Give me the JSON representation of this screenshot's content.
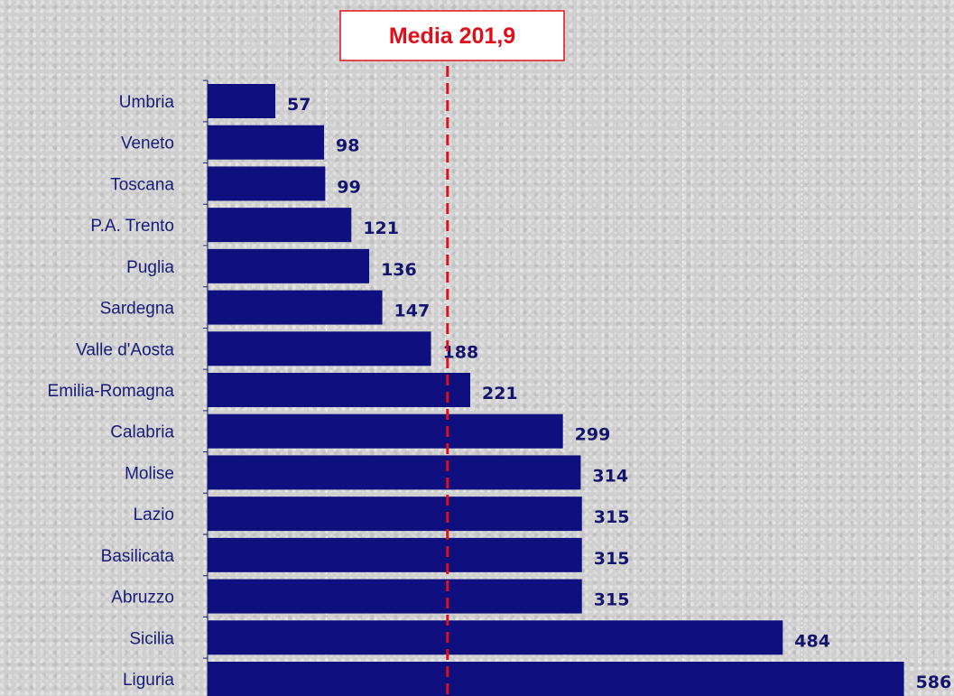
{
  "chart_data": {
    "type": "bar",
    "orientation": "horizontal",
    "categories": [
      "Umbria",
      "Veneto",
      "Toscana",
      "P.A. Trento",
      "Puglia",
      "Sardegna",
      "Valle d'Aosta",
      "Emilia-Romagna",
      "Calabria",
      "Molise",
      "Lazio",
      "Basilicata",
      "Abruzzo",
      "Sicilia",
      "Liguria"
    ],
    "values": [
      57,
      98,
      99,
      121,
      136,
      147,
      188,
      221,
      299,
      314,
      315,
      315,
      315,
      484,
      586
    ],
    "data_labels": [
      "57",
      "98",
      "99",
      "121",
      "136",
      "147",
      "188",
      "221",
      "299",
      "314",
      "315",
      "315",
      "315",
      "484",
      "586"
    ],
    "xlim": [
      0,
      600
    ],
    "grid": true,
    "bar_color": "#0f0f80",
    "reference_line": {
      "label": "Media 201,9",
      "value": 201.9,
      "color": "#e0101a"
    }
  }
}
